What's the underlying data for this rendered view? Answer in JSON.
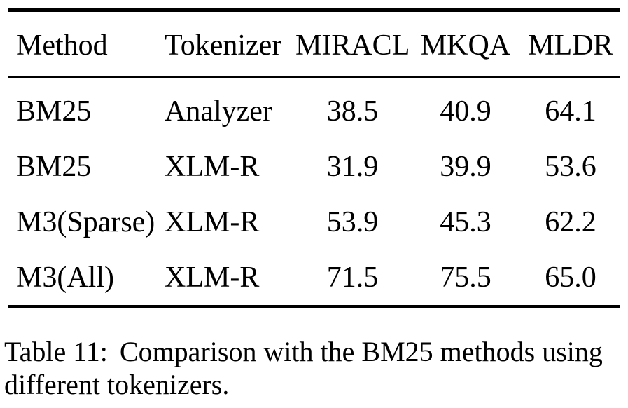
{
  "colors": {
    "background": "#ffffff",
    "text": "#000000",
    "rule": "#000000"
  },
  "table": {
    "columns": [
      "Method",
      "Tokenizer",
      "MIRACL",
      "MKQA",
      "MLDR"
    ],
    "rows": [
      [
        "BM25",
        "Analyzer",
        "38.5",
        "40.9",
        "64.1"
      ],
      [
        "BM25",
        "XLM-R",
        "31.9",
        "39.9",
        "53.6"
      ],
      [
        "M3(Sparse)",
        "XLM-R",
        "53.9",
        "45.3",
        "62.2"
      ],
      [
        "M3(All)",
        "XLM-R",
        "71.5",
        "75.5",
        "65.0"
      ]
    ]
  },
  "caption": {
    "label": "Table 11:",
    "text": "Comparison with the BM25 methods using different tokenizers."
  },
  "chart_data": {
    "type": "table",
    "title": "Table 11: Comparison with the BM25 methods using different tokenizers.",
    "columns": [
      "Method",
      "Tokenizer",
      "MIRACL",
      "MKQA",
      "MLDR"
    ],
    "rows": [
      {
        "method": "BM25",
        "tokenizer": "Analyzer",
        "miracl": 38.5,
        "mkqa": 40.9,
        "mldr": 64.1
      },
      {
        "method": "BM25",
        "tokenizer": "XLM-R",
        "miracl": 31.9,
        "mkqa": 39.9,
        "mldr": 53.6
      },
      {
        "method": "M3(Sparse)",
        "tokenizer": "XLM-R",
        "miracl": 53.9,
        "mkqa": 45.3,
        "mldr": 62.2
      },
      {
        "method": "M3(All)",
        "tokenizer": "XLM-R",
        "miracl": 71.5,
        "mkqa": 75.5,
        "mldr": 65.0
      }
    ]
  }
}
